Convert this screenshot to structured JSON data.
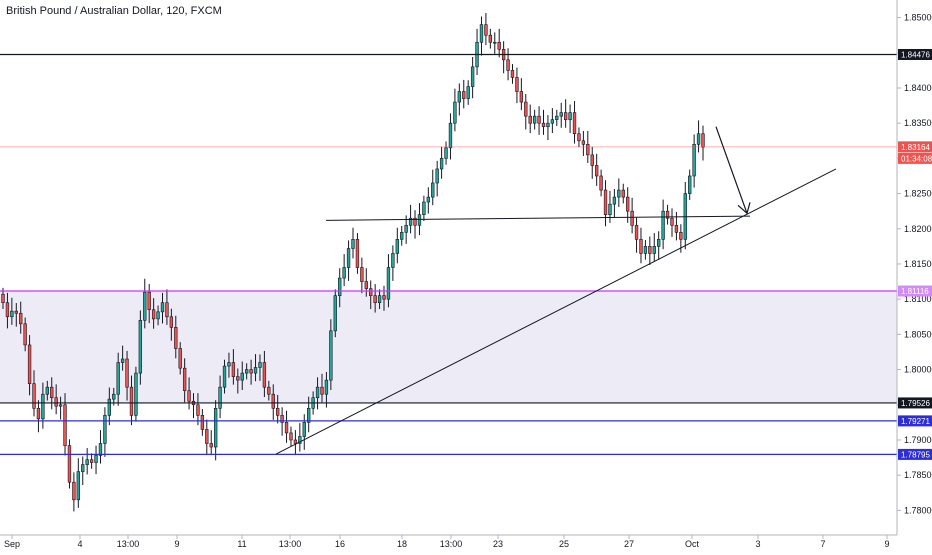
{
  "chart_data": {
    "type": "candlestick",
    "title": "British Pound / Australian Dollar, 120, FXCM",
    "ylim": [
      1.7765,
      1.8525
    ],
    "y_ticks": [
      "1.85000",
      "1.84500",
      "1.84000",
      "1.83500",
      "1.83000",
      "1.82500",
      "1.82000",
      "1.81500",
      "1.81000",
      "1.80500",
      "1.80000",
      "1.79500",
      "1.79000",
      "1.78500",
      "1.78000"
    ],
    "x_tick_labels": [
      "Sep",
      "4",
      "13:00",
      "9",
      "11",
      "13:00",
      "16",
      "18",
      "13:00",
      "23",
      "25",
      "27",
      "Oct",
      "3",
      "7",
      "9"
    ],
    "price_badges": [
      {
        "text": "1.84476",
        "value": 1.84476,
        "style": "dark"
      },
      {
        "text": "1.83164",
        "value": 1.83164,
        "style": "red"
      },
      {
        "text": "01:34:08",
        "value": 1.83,
        "style": "red"
      },
      {
        "text": "1.81116",
        "value": 1.81116,
        "style": "magenta"
      },
      {
        "text": "1.79526",
        "value": 1.79526,
        "style": "dark"
      },
      {
        "text": "1.79271",
        "value": 1.79271,
        "style": "blue"
      },
      {
        "text": "1.78795",
        "value": 1.78795,
        "style": "blue"
      }
    ],
    "horizontal_levels": [
      {
        "value": 1.84476,
        "color": "#131722"
      },
      {
        "value": 1.81116,
        "color": "#cc33ff"
      },
      {
        "value": 1.79526,
        "color": "#131722"
      },
      {
        "value": 1.79271,
        "color": "#2e2ed6"
      },
      {
        "value": 1.78795,
        "color": "#2e2ed6"
      }
    ],
    "last_price": 1.83164,
    "range_zone": [
      1.79526,
      1.81116
    ],
    "candle_colors": {
      "up": "#26a69a",
      "down": "#ef5350"
    },
    "series": [
      {
        "close_path": [
          1.8095,
          1.8075,
          1.8083,
          1.808,
          1.8065,
          1.8035,
          1.798,
          1.7945,
          1.793,
          1.7965,
          1.7975,
          1.796,
          1.7948,
          1.795,
          1.7892,
          1.784,
          1.7815,
          1.7855,
          1.7865,
          1.7872,
          1.7868,
          1.7878,
          1.7895,
          1.7935,
          1.7958,
          1.7965,
          1.801,
          1.8015,
          1.7975,
          1.7935,
          1.7995,
          1.807,
          1.811,
          1.8085,
          1.8072,
          1.8082,
          1.8095,
          1.8075,
          1.806,
          1.803,
          1.8002,
          1.797,
          1.7955,
          1.795,
          1.7935,
          1.7915,
          1.7895,
          1.789,
          1.7945,
          1.7975,
          1.8005,
          1.801,
          1.799,
          1.7985,
          1.7995,
          1.8,
          1.7995,
          1.8003,
          1.801,
          1.7975,
          1.7965,
          1.7945,
          1.7935,
          1.7925,
          1.791,
          1.79,
          1.7895,
          1.7905,
          1.7925,
          1.7945,
          1.796,
          1.7975,
          1.7965,
          1.7985,
          1.8055,
          1.8105,
          1.813,
          1.8145,
          1.8172,
          1.8185,
          1.8145,
          1.8125,
          1.8115,
          1.8105,
          1.8095,
          1.8105,
          1.81,
          1.8145,
          1.8165,
          1.8185,
          1.8195,
          1.8205,
          1.8215,
          1.8205,
          1.822,
          1.8238,
          1.8245,
          1.8265,
          1.8285,
          1.83,
          1.8315,
          1.835,
          1.838,
          1.8395,
          1.8385,
          1.8402,
          1.843,
          1.8465,
          1.849,
          1.8475,
          1.8465,
          1.8465,
          1.8455,
          1.844,
          1.8425,
          1.8415,
          1.8395,
          1.838,
          1.836,
          1.835,
          1.836,
          1.835,
          1.8345,
          1.835,
          1.8355,
          1.836,
          1.8365,
          1.8355,
          1.8365,
          1.8335,
          1.8325,
          1.832,
          1.8305,
          1.829,
          1.8275,
          1.8255,
          1.822,
          1.8235,
          1.8245,
          1.8255,
          1.8245,
          1.8225,
          1.8205,
          1.8185,
          1.8165,
          1.8175,
          1.8165,
          1.8175,
          1.8185,
          1.8225,
          1.8215,
          1.8205,
          1.8195,
          1.8185,
          1.825,
          1.8275,
          1.832,
          1.8335,
          1.8316
        ]
      }
    ],
    "drawings": [
      {
        "type": "trendline",
        "from": [
          "13:00 (Sep 12)",
          1.788
        ],
        "to": [
          "Oct 4",
          1.8285
        ]
      },
      {
        "type": "horizontal_ray",
        "from": [
          "16 Sep",
          1.8212
        ],
        "to": [
          "Oct 3",
          1.8218
        ]
      },
      {
        "type": "arrow",
        "from": [
          "Oct 1",
          1.8345
        ],
        "to": [
          "Oct 3",
          1.8222
        ]
      }
    ]
  }
}
